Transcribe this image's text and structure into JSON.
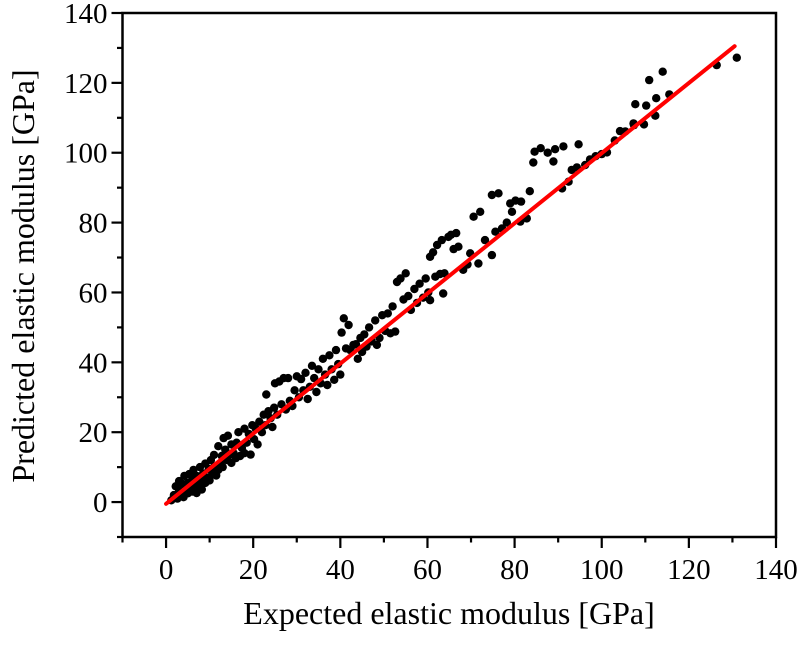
{
  "figure": {
    "background": "#ffffff",
    "frame_color": "#000000"
  },
  "chart_data": {
    "type": "scatter",
    "title": "",
    "xlabel": "Expected elastic modulus [GPa]",
    "ylabel": "Predicted elastic modulus [GPa]",
    "xlim": [
      -10,
      140
    ],
    "ylim": [
      -10,
      140
    ],
    "xticks": [
      0,
      20,
      40,
      60,
      80,
      100,
      120,
      140
    ],
    "yticks": [
      0,
      20,
      40,
      60,
      80,
      100,
      120,
      140
    ],
    "minor_tick_step": 10,
    "grid": false,
    "legend": "none",
    "point_color": "#000000",
    "fit_line": {
      "x1": 0,
      "y1": -0.5,
      "x2": 130.5,
      "y2": 130.5,
      "color": "#ff0000"
    },
    "points": [
      [
        1.2,
        0.5
      ],
      [
        1.8,
        2
      ],
      [
        2.2,
        4.5
      ],
      [
        2.6,
        1
      ],
      [
        3,
        3.2
      ],
      [
        3,
        6
      ],
      [
        3.5,
        2
      ],
      [
        3.8,
        5.2
      ],
      [
        4,
        1.4
      ],
      [
        4.2,
        7.5
      ],
      [
        4.6,
        3.5
      ],
      [
        5,
        2.5
      ],
      [
        5,
        5.5
      ],
      [
        5.3,
        8
      ],
      [
        5.6,
        4
      ],
      [
        6,
        3
      ],
      [
        6,
        6.5
      ],
      [
        6.3,
        9.2
      ],
      [
        6.8,
        5
      ],
      [
        7,
        2.6
      ],
      [
        7,
        7.5
      ],
      [
        7.4,
        4.5
      ],
      [
        7.8,
        10
      ],
      [
        8,
        6
      ],
      [
        8.2,
        3.6
      ],
      [
        8.5,
        8.2
      ],
      [
        9,
        5.5
      ],
      [
        9,
        11
      ],
      [
        9.4,
        7
      ],
      [
        9.8,
        9.5
      ],
      [
        10,
        6.2
      ],
      [
        10.3,
        12
      ],
      [
        10.6,
        8
      ],
      [
        11,
        10
      ],
      [
        11,
        13.5
      ],
      [
        11.5,
        7.6
      ],
      [
        12,
        9.2
      ],
      [
        12,
        16
      ],
      [
        12.4,
        11
      ],
      [
        12.8,
        13.2
      ],
      [
        13,
        10
      ],
      [
        13.2,
        18.3
      ],
      [
        13.6,
        15
      ],
      [
        14,
        12
      ],
      [
        14.2,
        19
      ],
      [
        14.6,
        13.6
      ],
      [
        15,
        11.2
      ],
      [
        15,
        16.5
      ],
      [
        15.5,
        14
      ],
      [
        16,
        12.6
      ],
      [
        16.2,
        17
      ],
      [
        16.6,
        20
      ],
      [
        17,
        13.2
      ],
      [
        17.4,
        15.5
      ],
      [
        18,
        14
      ],
      [
        18,
        21
      ],
      [
        18.5,
        17
      ],
      [
        19,
        19.5
      ],
      [
        19.4,
        13.6
      ],
      [
        19.8,
        22
      ],
      [
        20.2,
        18
      ],
      [
        20.6,
        21
      ],
      [
        21,
        16.5
      ],
      [
        21.4,
        23
      ],
      [
        22,
        20
      ],
      [
        22.4,
        25
      ],
      [
        22.8,
        22
      ],
      [
        23,
        30.8
      ],
      [
        23.5,
        26
      ],
      [
        24,
        24
      ],
      [
        24.4,
        21.5
      ],
      [
        24.8,
        27
      ],
      [
        25,
        34
      ],
      [
        25.5,
        25
      ],
      [
        26,
        34.5
      ],
      [
        26.5,
        28
      ],
      [
        27,
        35.5
      ],
      [
        27.5,
        26.5
      ],
      [
        28,
        35.5
      ],
      [
        28.4,
        29
      ],
      [
        29,
        27.5
      ],
      [
        29.5,
        32
      ],
      [
        30,
        36
      ],
      [
        30.5,
        30
      ],
      [
        31,
        35.2
      ],
      [
        31.5,
        32
      ],
      [
        32,
        37
      ],
      [
        32.5,
        29.5
      ],
      [
        33,
        33
      ],
      [
        33.5,
        39
      ],
      [
        34,
        35.5
      ],
      [
        34.5,
        31.5
      ],
      [
        35,
        38
      ],
      [
        35.5,
        34
      ],
      [
        36,
        41
      ],
      [
        36.5,
        36.5
      ],
      [
        37,
        33.5
      ],
      [
        37.5,
        42
      ],
      [
        38,
        38
      ],
      [
        38.6,
        35
      ],
      [
        39,
        43.5
      ],
      [
        39.5,
        39.5
      ],
      [
        40,
        36.5
      ],
      [
        40.3,
        48.5
      ],
      [
        40.8,
        52.6
      ],
      [
        41.3,
        44
      ],
      [
        41.9,
        50.7
      ],
      [
        42.3,
        43.5
      ],
      [
        43,
        45
      ],
      [
        43.6,
        45.2
      ],
      [
        44,
        41
      ],
      [
        44.6,
        47
      ],
      [
        45,
        43
      ],
      [
        45.5,
        48
      ],
      [
        46,
        44.5
      ],
      [
        46.6,
        50
      ],
      [
        47.2,
        46
      ],
      [
        48,
        52
      ],
      [
        48.4,
        45
      ],
      [
        49,
        47
      ],
      [
        49.6,
        53.5
      ],
      [
        50.3,
        49
      ],
      [
        50.9,
        54
      ],
      [
        51.5,
        48.3
      ],
      [
        52,
        56
      ],
      [
        52.6,
        48.8
      ],
      [
        53,
        63
      ],
      [
        53.8,
        64
      ],
      [
        54.5,
        58
      ],
      [
        55,
        65.5
      ],
      [
        55.6,
        59
      ],
      [
        56.2,
        55
      ],
      [
        57,
        61
      ],
      [
        57.6,
        57
      ],
      [
        58.2,
        62.5
      ],
      [
        59,
        58.5
      ],
      [
        59.6,
        64
      ],
      [
        60.2,
        60
      ],
      [
        60.6,
        70.2
      ],
      [
        60.6,
        57.8
      ],
      [
        61.3,
        71.5
      ],
      [
        61.8,
        64.5
      ],
      [
        62.2,
        73.6
      ],
      [
        62.9,
        65.3
      ],
      [
        63.3,
        75
      ],
      [
        63.6,
        59.7
      ],
      [
        63.9,
        65.5
      ],
      [
        64.8,
        75.9
      ],
      [
        65.4,
        76.5
      ],
      [
        66,
        72.4
      ],
      [
        66.6,
        77
      ],
      [
        67.1,
        73.1
      ],
      [
        68.2,
        66.5
      ],
      [
        69.2,
        68
      ],
      [
        69.8,
        71.2
      ],
      [
        70.6,
        81.7
      ],
      [
        71.7,
        68.3
      ],
      [
        72.1,
        83.1
      ],
      [
        73.2,
        75
      ],
      [
        74.8,
        70.7
      ],
      [
        75.6,
        77.4
      ],
      [
        76.3,
        88.4
      ],
      [
        77.1,
        78.3
      ],
      [
        74.8,
        87.9
      ],
      [
        78.2,
        80
      ],
      [
        79,
        85.5
      ],
      [
        79.4,
        83.1
      ],
      [
        80.2,
        86.3
      ],
      [
        81.3,
        80.3
      ],
      [
        81.5,
        86
      ],
      [
        82.8,
        81.2
      ],
      [
        83.5,
        89
      ],
      [
        84.3,
        97.2
      ],
      [
        84.6,
        100.3
      ],
      [
        86,
        101.3
      ],
      [
        87.6,
        100
      ],
      [
        88.9,
        97.5
      ],
      [
        89.3,
        101
      ],
      [
        90.9,
        89.8
      ],
      [
        91.2,
        101.8
      ],
      [
        92.4,
        91.7
      ],
      [
        93.1,
        95.1
      ],
      [
        94.3,
        95.8
      ],
      [
        94.7,
        102.4
      ],
      [
        96.2,
        96.5
      ],
      [
        97.3,
        98.1
      ],
      [
        98.6,
        99
      ],
      [
        100,
        99.6
      ],
      [
        101.2,
        100.1
      ],
      [
        103,
        103.5
      ],
      [
        104.2,
        106.2
      ],
      [
        105.4,
        106.1
      ],
      [
        107.3,
        108.4
      ],
      [
        107.4,
        107.9
      ],
      [
        107.7,
        113.9
      ],
      [
        109.7,
        108.1
      ],
      [
        110.2,
        113.5
      ],
      [
        110.9,
        120.8
      ],
      [
        112.3,
        110.6
      ],
      [
        112.5,
        115.6
      ],
      [
        114,
        123.2
      ],
      [
        115.5,
        116.7
      ],
      [
        126.4,
        125.1
      ],
      [
        131,
        127.2
      ]
    ]
  }
}
